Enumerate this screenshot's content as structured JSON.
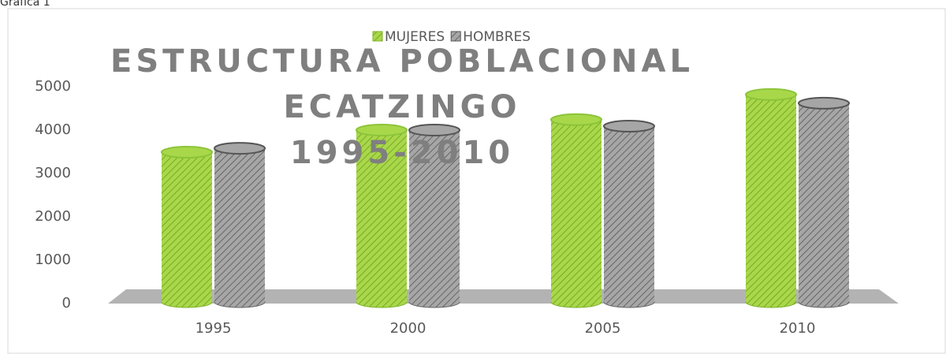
{
  "caption": "Gráfica 1",
  "chart_data": {
    "type": "bar",
    "title": [
      "ESTRUCTURA POBLACIONAL",
      "ECATZINGO",
      "1995-2010"
    ],
    "categories": [
      "1995",
      "2000",
      "2005",
      "2010"
    ],
    "series": [
      {
        "name": "MUJERES",
        "color": "#a8d84a",
        "values": [
          3490,
          4000,
          4240,
          4820
        ]
      },
      {
        "name": "HOMBRES",
        "color": "#a6a6a6",
        "values": [
          3580,
          4000,
          4090,
          4620
        ]
      }
    ],
    "ylim": [
      0,
      5000
    ],
    "yticks": [
      0,
      1000,
      2000,
      3000,
      4000,
      5000
    ],
    "grid": false
  }
}
